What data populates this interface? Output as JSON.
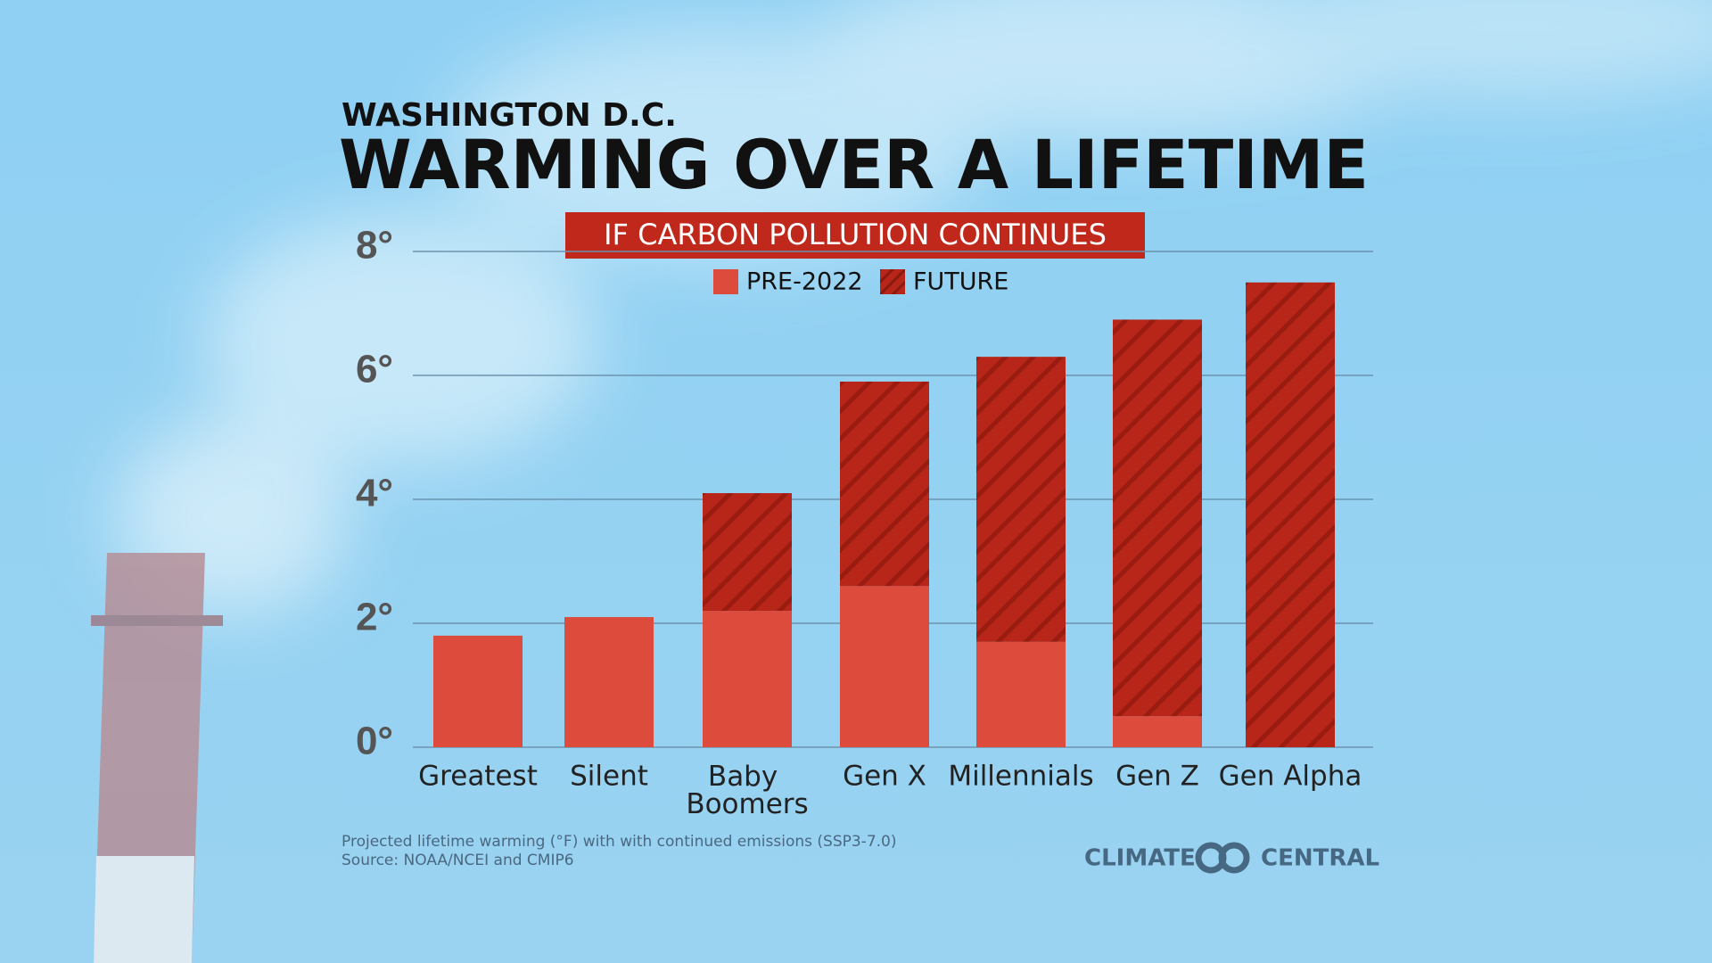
{
  "chart_data": {
    "type": "stacked_bar",
    "supertitle": "WASHINGTON D.C.",
    "title": "WARMING OVER A LIFETIME",
    "subtitle": "IF CARBON POLLUTION CONTINUES",
    "categories": [
      "Greatest",
      "Silent",
      "Baby Boomers",
      "Gen X",
      "Millennials",
      "Gen Z",
      "Gen Alpha"
    ],
    "series": [
      {
        "name": "PRE-2022",
        "color": "#dc4b3c",
        "values": [
          1.8,
          2.1,
          2.2,
          2.6,
          1.7,
          0.5,
          0
        ]
      },
      {
        "name": "FUTURE",
        "color": "#b8261a",
        "pattern": "hatch",
        "values": [
          0,
          0,
          1.9,
          3.3,
          4.6,
          6.4,
          7.5
        ]
      }
    ],
    "ylim": [
      0,
      8
    ],
    "yticks": [
      {
        "value": 0,
        "label": "0°"
      },
      {
        "value": 2,
        "label": "2°"
      },
      {
        "value": 4,
        "label": "4°"
      },
      {
        "value": 6,
        "label": "6°"
      },
      {
        "value": 8,
        "label": "8°"
      }
    ],
    "grid": true,
    "notes": [
      "Projected lifetime warming (°F) with with continued emissions (SSP3-7.0)",
      "Source: NOAA/NCEI and CMIP6"
    ],
    "logo": [
      "CLIMATE",
      "CENTRAL"
    ]
  }
}
